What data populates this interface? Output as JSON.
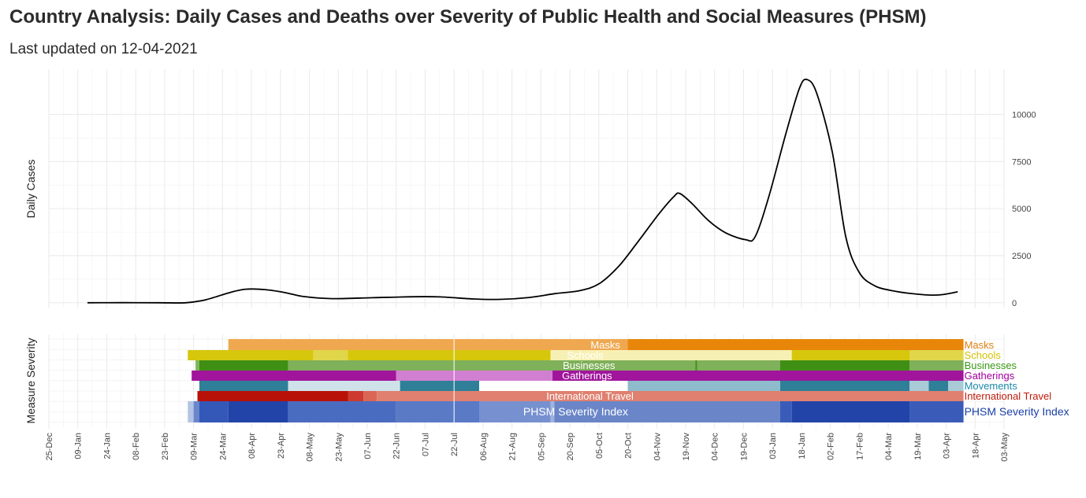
{
  "title": "Country Analysis: Daily Cases and Deaths over Severity of Public Health and Social Measures (PHSM)",
  "subtitle": "Last updated on 12-04-2021",
  "chart_data": [
    {
      "type": "line",
      "ylabel": "Daily Cases",
      "xlabel": "",
      "ylim": [
        -300,
        12400
      ],
      "y_ticks": [
        0,
        2500,
        5000,
        7500,
        10000
      ],
      "x_range": [
        "2019-12-25",
        "2021-05-03"
      ],
      "grid": true,
      "series": [
        {
          "color": "#000000",
          "points": [
            [
              "2020-01-14",
              0
            ],
            [
              "2020-02-01",
              5
            ],
            [
              "2020-02-20",
              0
            ],
            [
              "2020-03-05",
              0
            ],
            [
              "2020-03-15",
              150
            ],
            [
              "2020-03-28",
              550
            ],
            [
              "2020-04-05",
              720
            ],
            [
              "2020-04-15",
              700
            ],
            [
              "2020-04-25",
              550
            ],
            [
              "2020-05-05",
              330
            ],
            [
              "2020-05-20",
              220
            ],
            [
              "2020-06-10",
              270
            ],
            [
              "2020-07-01",
              320
            ],
            [
              "2020-07-15",
              310
            ],
            [
              "2020-08-01",
              200
            ],
            [
              "2020-08-15",
              180
            ],
            [
              "2020-08-30",
              280
            ],
            [
              "2020-09-12",
              480
            ],
            [
              "2020-09-25",
              640
            ],
            [
              "2020-10-05",
              1000
            ],
            [
              "2020-10-15",
              1900
            ],
            [
              "2020-10-25",
              3200
            ],
            [
              "2020-11-05",
              4700
            ],
            [
              "2020-11-13",
              5650
            ],
            [
              "2020-11-16",
              5800
            ],
            [
              "2020-11-22",
              5300
            ],
            [
              "2020-12-01",
              4350
            ],
            [
              "2020-12-10",
              3700
            ],
            [
              "2020-12-20",
              3350
            ],
            [
              "2020-12-25",
              3500
            ],
            [
              "2021-01-01",
              5600
            ],
            [
              "2021-01-10",
              9000
            ],
            [
              "2021-01-17",
              11400
            ],
            [
              "2021-01-21",
              11850
            ],
            [
              "2021-01-26",
              11100
            ],
            [
              "2021-02-03",
              8000
            ],
            [
              "2021-02-10",
              3500
            ],
            [
              "2021-02-17",
              1600
            ],
            [
              "2021-02-25",
              900
            ],
            [
              "2021-03-05",
              660
            ],
            [
              "2021-03-15",
              500
            ],
            [
              "2021-03-25",
              410
            ],
            [
              "2021-04-01",
              430
            ],
            [
              "2021-04-09",
              580
            ]
          ]
        }
      ]
    },
    {
      "type": "heatmap",
      "ylabel": "Measure Severity",
      "x_ticks": [
        "25-Dec",
        "09-Jan",
        "24-Jan",
        "08-Feb",
        "23-Feb",
        "09-Mar",
        "24-Mar",
        "08-Apr",
        "23-Apr",
        "08-May",
        "23-May",
        "07-Jun",
        "22-Jun",
        "07-Jul",
        "22-Jul",
        "06-Aug",
        "21-Aug",
        "05-Sep",
        "20-Sep",
        "05-Oct",
        "20-Oct",
        "04-Nov",
        "19-Nov",
        "04-Dec",
        "19-Dec",
        "03-Jan",
        "18-Jan",
        "02-Feb",
        "17-Feb",
        "04-Mar",
        "19-Mar",
        "03-Apr",
        "18-Apr",
        "03-May"
      ],
      "x_tick_dates": [
        "2019-12-25",
        "2020-01-09",
        "2020-01-24",
        "2020-02-08",
        "2020-02-23",
        "2020-03-09",
        "2020-03-24",
        "2020-04-08",
        "2020-04-23",
        "2020-05-08",
        "2020-05-23",
        "2020-06-07",
        "2020-06-22",
        "2020-07-07",
        "2020-07-22",
        "2020-08-06",
        "2020-08-21",
        "2020-09-05",
        "2020-09-20",
        "2020-10-05",
        "2020-10-20",
        "2020-11-04",
        "2020-11-19",
        "2020-12-04",
        "2020-12-19",
        "2021-01-03",
        "2021-01-18",
        "2021-02-02",
        "2021-02-17",
        "2021-03-04",
        "2021-03-19",
        "2021-04-03",
        "2021-04-18",
        "2021-05-03"
      ],
      "vline": "2020-07-22",
      "rows": [
        {
          "name": "Masks",
          "label_color": "#e08010",
          "segments": [
            [
              "2020-03-27",
              "2020-10-20",
              "#f0a850"
            ],
            [
              "2020-10-20",
              "2021-04-12",
              "#e8860a"
            ]
          ]
        },
        {
          "name": "Schools",
          "label_color": "#d4c000",
          "segments": [
            [
              "2020-03-06",
              "2020-05-10",
              "#d6c70c"
            ],
            [
              "2020-05-10",
              "2020-05-28",
              "#e0d64a"
            ],
            [
              "2020-05-28",
              "2020-09-10",
              "#d6c70c"
            ],
            [
              "2020-09-10",
              "2021-01-13",
              "#f7f0b4"
            ],
            [
              "2021-01-13",
              "2021-03-15",
              "#d6c70c"
            ],
            [
              "2021-03-15",
              "2021-04-12",
              "#e0d64a"
            ]
          ]
        },
        {
          "name": "Businesses",
          "label_color": "#3a9a14",
          "segments": [
            [
              "2020-03-10",
              "2020-03-12",
              "#7fb660"
            ],
            [
              "2020-03-12",
              "2020-04-27",
              "#3e8f14"
            ],
            [
              "2020-04-27",
              "2020-11-24",
              "#7fb05a"
            ],
            [
              "2020-11-24",
              "2020-11-25",
              "#3e8f14"
            ],
            [
              "2020-11-25",
              "2021-01-07",
              "#7fb05a"
            ],
            [
              "2021-01-07",
              "2021-03-15",
              "#3e8f14"
            ],
            [
              "2021-03-15",
              "2021-04-12",
              "#7fb05a"
            ]
          ]
        },
        {
          "name": "Gatherings",
          "label_color": "#a0009c",
          "segments": [
            [
              "2020-03-08",
              "2020-06-22",
              "#a0159c"
            ],
            [
              "2020-06-22",
              "2020-09-11",
              "#d17fd0"
            ],
            [
              "2020-09-11",
              "2021-04-12",
              "#a0159c"
            ]
          ]
        },
        {
          "name": "Movements",
          "label_color": "#1a8aa8",
          "segments": [
            [
              "2020-03-12",
              "2020-04-27",
              "#2f7f98"
            ],
            [
              "2020-04-27",
              "2020-06-24",
              "#cfe2ea"
            ],
            [
              "2020-06-24",
              "2020-08-04",
              "#2f7f98"
            ],
            [
              "2020-08-04",
              "2020-10-20",
              "#ffffff"
            ],
            [
              "2020-10-20",
              "2021-01-07",
              "#8fbccc"
            ],
            [
              "2021-01-07",
              "2021-03-15",
              "#2f7f98"
            ],
            [
              "2021-03-15",
              "2021-03-25",
              "#a9cad6"
            ],
            [
              "2021-03-25",
              "2021-04-04",
              "#2f7f98"
            ],
            [
              "2021-04-04",
              "2021-04-12",
              "#a9cad6"
            ]
          ]
        },
        {
          "name": "International Travel",
          "label_color": "#c01a0a",
          "segments": [
            [
              "2020-03-11",
              "2020-05-28",
              "#b81208"
            ],
            [
              "2020-05-28",
              "2020-06-05",
              "#cc3a30"
            ],
            [
              "2020-06-05",
              "2020-06-12",
              "#da6656"
            ],
            [
              "2020-06-12",
              "2021-04-12",
              "#e08070"
            ]
          ]
        },
        {
          "name": "PHSM Severity Index",
          "label_color": "#1a3fa8",
          "segments": [
            [
              "2020-03-06",
              "2020-03-09",
              "#b4c4e4"
            ],
            [
              "2020-03-09",
              "2020-03-12",
              "#6a86cc"
            ],
            [
              "2020-03-12",
              "2020-03-27",
              "#3358b8"
            ],
            [
              "2020-03-27",
              "2020-04-27",
              "#2244a8"
            ],
            [
              "2020-04-27",
              "2020-06-22",
              "#4a6cc0"
            ],
            [
              "2020-06-22",
              "2020-08-04",
              "#5a7ac6"
            ],
            [
              "2020-08-04",
              "2020-09-10",
              "#7790d0"
            ],
            [
              "2020-09-10",
              "2020-09-12",
              "#a0b2de"
            ],
            [
              "2020-09-12",
              "2021-01-07",
              "#6a86c8"
            ],
            [
              "2021-01-07",
              "2021-01-13",
              "#3a5cb8"
            ],
            [
              "2021-01-13",
              "2021-03-15",
              "#2244a8"
            ],
            [
              "2021-03-15",
              "2021-04-12",
              "#3a5cb8"
            ]
          ]
        }
      ]
    }
  ]
}
